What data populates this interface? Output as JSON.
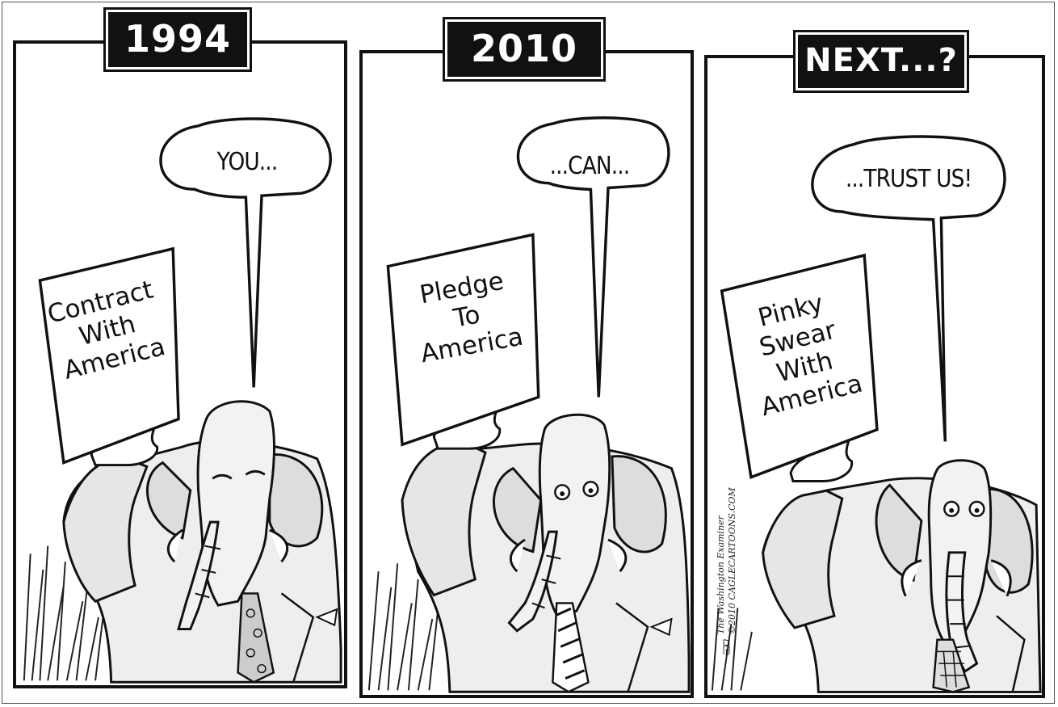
{
  "cartoon": {
    "panels": [
      {
        "title": "1994",
        "speech": "YOU...",
        "sign": "Contract\nWith\nAmerica"
      },
      {
        "title": "2010",
        "speech": "...CAN...",
        "sign": "Pledge\nTo\nAmerica"
      },
      {
        "title": "NEXT...?",
        "speech": "...TRUST US!",
        "sign": "Pinky\nSwear\nWith\nAmerica"
      }
    ],
    "credit": {
      "publication": "The Washington Examiner",
      "copyright": "©2010 CAGLECARTOONS.COM",
      "artist_signature": "BALLER"
    }
  }
}
